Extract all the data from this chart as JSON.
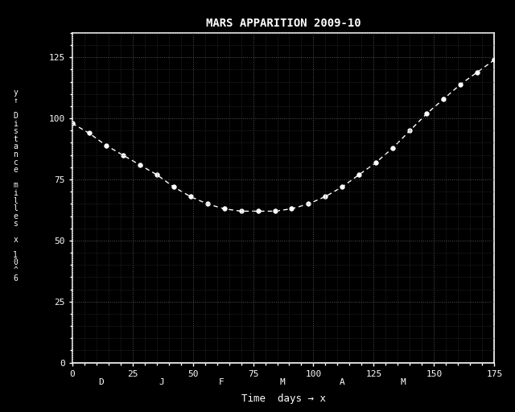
{
  "title": "MARS APPARITION 2009-10",
  "xlabel": "Time  days → x",
  "bg_color": "#000000",
  "line_color": "#ffffff",
  "marker_color": "#ffffff",
  "text_color": "#ffffff",
  "grid_color_minor": "#3a3a3a",
  "grid_color_major": "#555555",
  "xlim": [
    0,
    175
  ],
  "ylim": [
    0,
    135
  ],
  "xticks": [
    0,
    25,
    50,
    75,
    100,
    125,
    150,
    175
  ],
  "yticks": [
    0,
    25,
    50,
    75,
    100,
    125
  ],
  "month_labels": [
    "D",
    "J",
    "F",
    "M",
    "A",
    "M"
  ],
  "month_positions": [
    12,
    37,
    62,
    87,
    112,
    137
  ],
  "ylabel_str": "y\n↑\n \nD\ni\ns\nt\na\nn\nc\ne\n \nm\ni\nl\nl\ne\ns\n \nx\n \n1\n0\n^\n6",
  "data_x": [
    0,
    7,
    14,
    21,
    28,
    35,
    42,
    49,
    56,
    63,
    70,
    77,
    84,
    91,
    98,
    105,
    112,
    119,
    126,
    133,
    140,
    147,
    154,
    161,
    168,
    175
  ],
  "data_y": [
    98,
    94,
    89,
    85,
    81,
    77,
    72,
    68,
    65,
    63,
    62,
    62,
    62,
    63,
    65,
    68,
    72,
    77,
    82,
    88,
    95,
    102,
    108,
    114,
    119,
    124
  ]
}
